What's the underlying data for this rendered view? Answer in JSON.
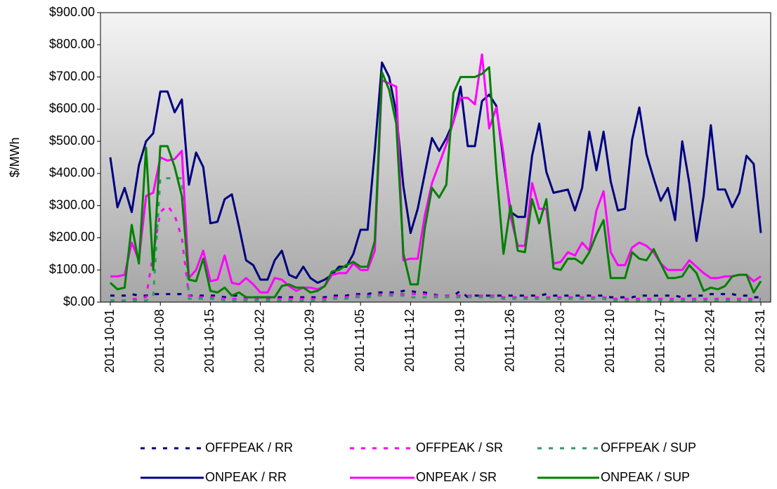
{
  "chart_data": {
    "type": "line",
    "y_label": "$/MWh",
    "x": [
      "2011-10-01",
      "2011-10-02",
      "2011-10-03",
      "2011-10-04",
      "2011-10-05",
      "2011-10-06",
      "2011-10-07",
      "2011-10-08",
      "2011-10-09",
      "2011-10-10",
      "2011-10-11",
      "2011-10-12",
      "2011-10-13",
      "2011-10-14",
      "2011-10-15",
      "2011-10-16",
      "2011-10-17",
      "2011-10-18",
      "2011-10-19",
      "2011-10-20",
      "2011-10-21",
      "2011-10-22",
      "2011-10-23",
      "2011-10-24",
      "2011-10-25",
      "2011-10-26",
      "2011-10-27",
      "2011-10-28",
      "2011-10-29",
      "2011-10-30",
      "2011-10-31",
      "2011-11-01",
      "2011-11-02",
      "2011-11-03",
      "2011-11-04",
      "2011-11-05",
      "2011-11-06",
      "2011-11-07",
      "2011-11-08",
      "2011-11-09",
      "2011-11-10",
      "2011-11-11",
      "2011-11-12",
      "2011-11-13",
      "2011-11-14",
      "2011-11-15",
      "2011-11-16",
      "2011-11-17",
      "2011-11-18",
      "2011-11-19",
      "2011-11-20",
      "2011-11-21",
      "2011-11-22",
      "2011-11-23",
      "2011-11-24",
      "2011-11-25",
      "2011-11-26",
      "2011-11-27",
      "2011-11-28",
      "2011-11-29",
      "2011-11-30",
      "2011-12-01",
      "2011-12-02",
      "2011-12-03",
      "2011-12-04",
      "2011-12-05",
      "2011-12-06",
      "2011-12-07",
      "2011-12-08",
      "2011-12-09",
      "2011-12-10",
      "2011-12-11",
      "2011-12-12",
      "2011-12-13",
      "2011-12-14",
      "2011-12-15",
      "2011-12-16",
      "2011-12-17",
      "2011-12-18",
      "2011-12-19",
      "2011-12-20",
      "2011-12-21",
      "2011-12-22",
      "2011-12-23",
      "2011-12-24",
      "2011-12-25",
      "2011-12-26",
      "2011-12-27",
      "2011-12-28",
      "2011-12-29",
      "2011-12-30",
      "2011-12-31"
    ],
    "xlim": [
      "2011-10-01",
      "2011-12-31"
    ],
    "xticks": [
      "2011-10-01",
      "2011-10-08",
      "2011-10-15",
      "2011-10-22",
      "2011-10-29",
      "2011-11-05",
      "2011-11-12",
      "2011-11-19",
      "2011-11-26",
      "2011-12-03",
      "2011-12-10",
      "2011-12-17",
      "2011-12-24",
      "2011-12-31"
    ],
    "ylim": [
      0,
      900
    ],
    "yticks": [
      {
        "value": 0,
        "label": "$0.00"
      },
      {
        "value": 100,
        "label": "$100.00"
      },
      {
        "value": 200,
        "label": "$200.00"
      },
      {
        "value": 300,
        "label": "$300.00"
      },
      {
        "value": 400,
        "label": "$400.00"
      },
      {
        "value": 500,
        "label": "$500.00"
      },
      {
        "value": 600,
        "label": "$600.00"
      },
      {
        "value": 700,
        "label": "$700.00"
      },
      {
        "value": 800,
        "label": "$800.00"
      },
      {
        "value": 900,
        "label": "$900.00"
      }
    ],
    "series": [
      {
        "name": "OFFPEAK / RR",
        "color": "#000080",
        "style": "dashed",
        "values": [
          20,
          20,
          20,
          25,
          20,
          20,
          25,
          25,
          25,
          25,
          25,
          20,
          20,
          20,
          20,
          20,
          15,
          20,
          20,
          15,
          15,
          15,
          15,
          15,
          15,
          15,
          15,
          15,
          15,
          15,
          15,
          20,
          20,
          20,
          25,
          25,
          25,
          30,
          30,
          30,
          30,
          35,
          35,
          30,
          30,
          25,
          20,
          20,
          20,
          35,
          15,
          20,
          20,
          20,
          20,
          20,
          20,
          20,
          20,
          20,
          20,
          25,
          20,
          20,
          20,
          20,
          20,
          20,
          20,
          20,
          15,
          15,
          15,
          15,
          20,
          20,
          20,
          20,
          20,
          20,
          15,
          20,
          20,
          20,
          25,
          25,
          25,
          25,
          20,
          20,
          15,
          15
        ]
      },
      {
        "name": "OFFPEAK / SR",
        "color": "#ff00ff",
        "style": "dashed",
        "values": [
          5,
          5,
          5,
          10,
          10,
          15,
          150,
          280,
          300,
          270,
          200,
          20,
          15,
          15,
          15,
          15,
          10,
          10,
          10,
          10,
          10,
          10,
          10,
          10,
          10,
          10,
          10,
          10,
          10,
          10,
          10,
          15,
          15,
          15,
          20,
          20,
          20,
          20,
          25,
          25,
          25,
          25,
          25,
          25,
          25,
          20,
          20,
          20,
          20,
          20,
          20,
          20,
          20,
          20,
          20,
          15,
          15,
          15,
          15,
          15,
          15,
          15,
          15,
          15,
          15,
          15,
          15,
          15,
          15,
          15,
          10,
          10,
          10,
          10,
          10,
          10,
          10,
          10,
          10,
          10,
          10,
          10,
          10,
          10,
          10,
          10,
          10,
          10,
          10,
          10,
          10,
          10
        ]
      },
      {
        "name": "OFFPEAK / SUP",
        "color": "#339966",
        "style": "dashed",
        "values": [
          5,
          5,
          5,
          5,
          5,
          5,
          15,
          385,
          385,
          385,
          385,
          10,
          10,
          10,
          10,
          10,
          5,
          5,
          5,
          5,
          5,
          5,
          5,
          5,
          5,
          5,
          5,
          5,
          5,
          5,
          5,
          10,
          10,
          10,
          15,
          15,
          15,
          20,
          20,
          20,
          20,
          20,
          15,
          15,
          15,
          15,
          15,
          15,
          15,
          15,
          15,
          15,
          15,
          15,
          15,
          10,
          10,
          10,
          10,
          10,
          10,
          10,
          10,
          10,
          10,
          10,
          10,
          10,
          10,
          10,
          5,
          5,
          5,
          5,
          5,
          5,
          5,
          5,
          5,
          5,
          5,
          5,
          5,
          5,
          5,
          5,
          5,
          5,
          5,
          5,
          5,
          5
        ]
      },
      {
        "name": "ONPEAK / RR",
        "color": "#000080",
        "style": "solid",
        "values": [
          450,
          295,
          355,
          280,
          425,
          500,
          525,
          655,
          655,
          590,
          630,
          365,
          465,
          420,
          245,
          250,
          320,
          335,
          235,
          130,
          115,
          70,
          70,
          130,
          160,
          85,
          75,
          110,
          75,
          60,
          70,
          85,
          110,
          110,
          150,
          225,
          225,
          470,
          745,
          700,
          590,
          360,
          215,
          290,
          400,
          510,
          470,
          510,
          560,
          670,
          485,
          485,
          625,
          645,
          610,
          440,
          280,
          265,
          265,
          455,
          555,
          405,
          340,
          345,
          350,
          285,
          355,
          530,
          410,
          530,
          375,
          285,
          290,
          505,
          605,
          460,
          385,
          315,
          355,
          255,
          500,
          370,
          190,
          330,
          550,
          350,
          350,
          295,
          340,
          455,
          430,
          215
        ]
      },
      {
        "name": "ONPEAK / SR",
        "color": "#ff00ff",
        "style": "solid",
        "values": [
          80,
          80,
          85,
          185,
          130,
          330,
          340,
          450,
          440,
          445,
          470,
          75,
          100,
          160,
          65,
          70,
          145,
          60,
          55,
          75,
          55,
          30,
          30,
          75,
          70,
          50,
          35,
          45,
          45,
          40,
          50,
          85,
          90,
          90,
          120,
          100,
          100,
          160,
          690,
          680,
          670,
          130,
          135,
          135,
          270,
          370,
          430,
          490,
          560,
          635,
          635,
          615,
          770,
          540,
          605,
          460,
          265,
          175,
          175,
          370,
          290,
          290,
          120,
          125,
          155,
          145,
          185,
          160,
          285,
          345,
          155,
          115,
          115,
          170,
          185,
          175,
          155,
          120,
          100,
          100,
          100,
          130,
          110,
          90,
          75,
          75,
          80,
          80,
          85,
          85,
          65,
          80
        ]
      },
      {
        "name": "ONPEAK / SUP",
        "color": "#008000",
        "style": "solid",
        "values": [
          60,
          40,
          45,
          240,
          120,
          480,
          100,
          485,
          485,
          420,
          330,
          70,
          65,
          135,
          35,
          30,
          45,
          20,
          30,
          15,
          15,
          15,
          15,
          15,
          50,
          55,
          45,
          45,
          30,
          35,
          50,
          95,
          100,
          115,
          125,
          110,
          110,
          190,
          715,
          660,
          555,
          150,
          55,
          55,
          230,
          355,
          325,
          365,
          650,
          700,
          700,
          700,
          710,
          730,
          410,
          150,
          300,
          160,
          155,
          320,
          245,
          320,
          105,
          100,
          135,
          135,
          120,
          155,
          210,
          255,
          75,
          75,
          75,
          155,
          135,
          130,
          165,
          120,
          75,
          75,
          80,
          115,
          90,
          35,
          45,
          40,
          50,
          80,
          85,
          85,
          30,
          65
        ]
      }
    ]
  }
}
